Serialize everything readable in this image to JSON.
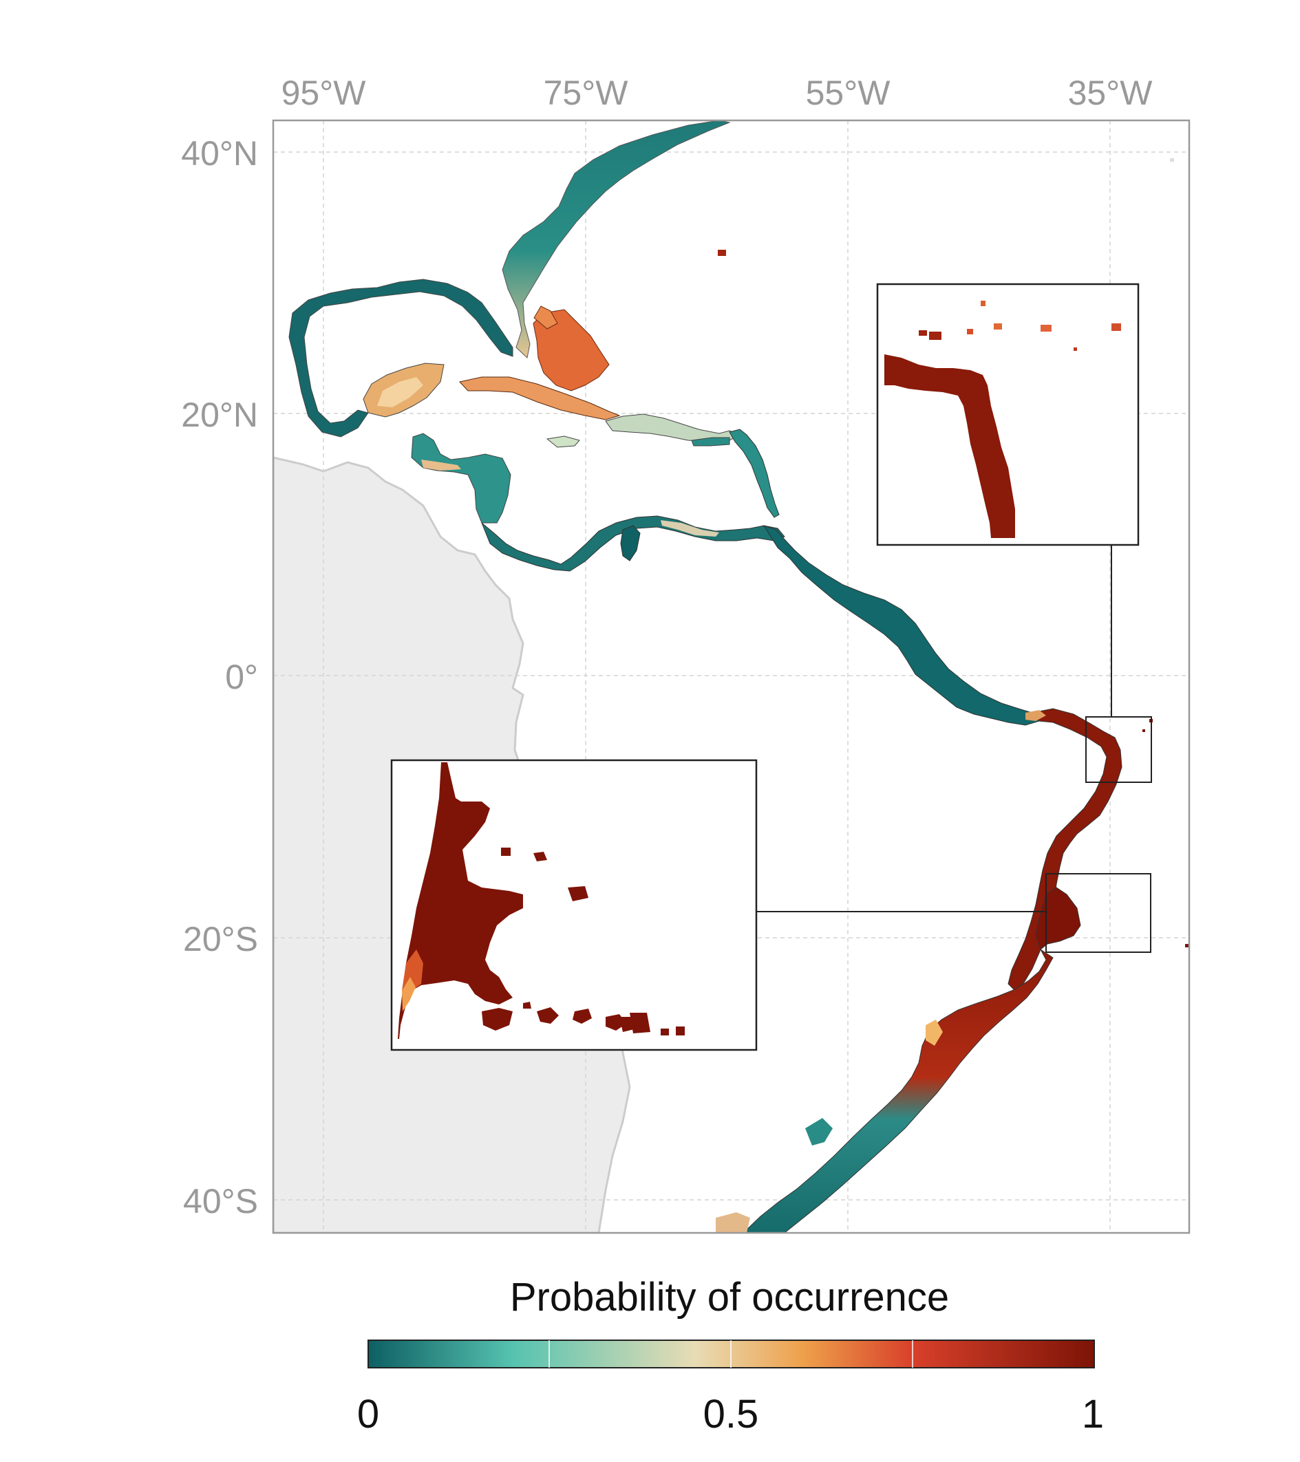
{
  "map": {
    "lon_ticks": [
      "95°W",
      "75°W",
      "55°W",
      "35°W"
    ],
    "lat_ticks": [
      "40°N",
      "20°N",
      "0°",
      "20°S",
      "40°S"
    ],
    "land_color": "#ececec",
    "land_border_color": "#cccccc",
    "grid_color": "#d4d4d4",
    "frame_color": "#999999"
  },
  "insets": [
    {
      "name": "northeast-brazil-inset"
    },
    {
      "name": "abrolhos-inset"
    }
  ],
  "legend": {
    "title": "Probability of occurrence",
    "ticks": [
      "0",
      "0.5",
      "1"
    ],
    "colors": [
      "#0e5f63",
      "#56c3b0",
      "#e8dcb5",
      "#eea04b",
      "#d8402a",
      "#7d1407"
    ]
  }
}
